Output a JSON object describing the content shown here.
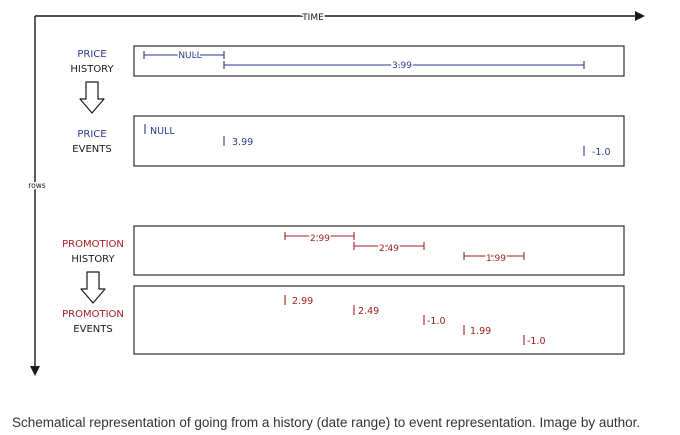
{
  "axes": {
    "time_label": "TIME",
    "rows_label": "rows"
  },
  "price": {
    "history_label_line1": "PRICE",
    "history_label_line2": "HISTORY",
    "events_label_line1": "PRICE",
    "events_label_line2": "EVENTS",
    "history_ranges": [
      {
        "label": "NULL"
      },
      {
        "label": "3.99"
      }
    ],
    "events": [
      {
        "label": "NULL"
      },
      {
        "label": "3.99"
      },
      {
        "label": "-1.0"
      }
    ]
  },
  "promotion": {
    "history_label_line1": "PROMOTION",
    "history_label_line2": "HISTORY",
    "events_label_line1": "PROMOTION",
    "events_label_line2": "EVENTS",
    "history_ranges": [
      {
        "label": "2.99"
      },
      {
        "label": "2.49"
      },
      {
        "label": "1.99"
      }
    ],
    "events": [
      {
        "label": "2.99"
      },
      {
        "label": "2.49"
      },
      {
        "label": "-1.0"
      },
      {
        "label": "1.99"
      },
      {
        "label": "-1.0"
      }
    ]
  },
  "caption": "Schematical representation of going from a history (date range) to event representation. Image by author.",
  "colors": {
    "ink": "#1a1a1a",
    "price": "#2b3a8f",
    "promotion": "#a32020"
  }
}
